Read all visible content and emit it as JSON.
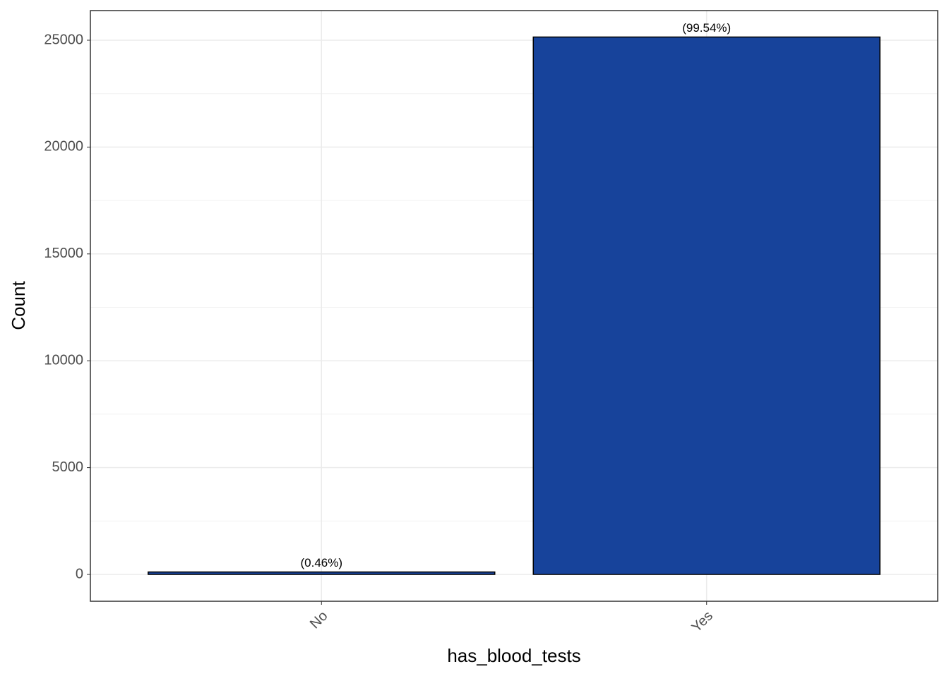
{
  "chart_data": {
    "type": "bar",
    "x_label": "has_blood_tests",
    "y_label": "Count",
    "categories": [
      "No",
      "Yes"
    ],
    "values": [
      116,
      25150
    ],
    "annotations": [
      "(0.46%)",
      "(99.54%)"
    ],
    "color": "#17439b",
    "ylim": [
      -1255,
      26387
    ],
    "yticks": [
      0,
      5000,
      10000,
      15000,
      20000,
      25000
    ],
    "grid": true
  }
}
